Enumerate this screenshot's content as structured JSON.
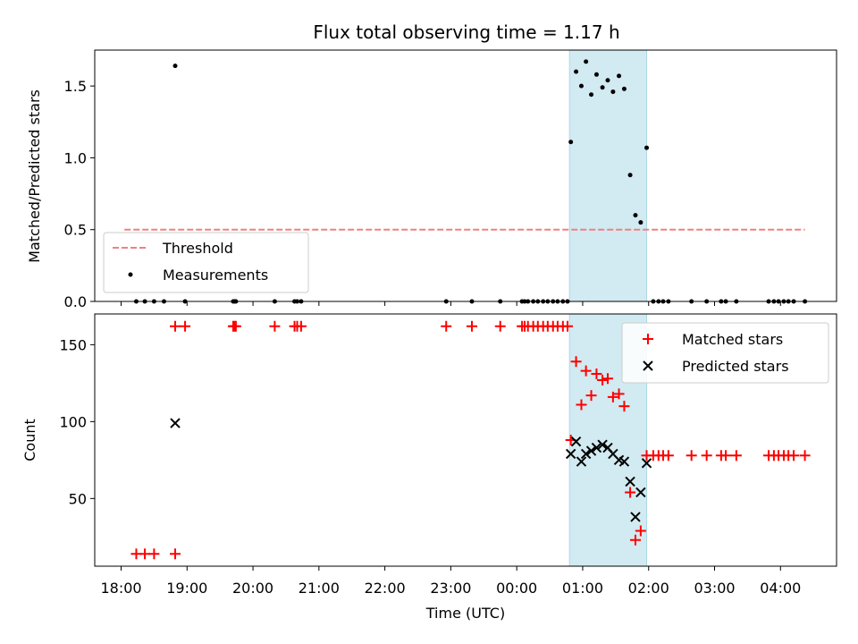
{
  "title": "Flux total observing time = 1.17 h",
  "colors": {
    "threshold": "#f08080",
    "measurement": "#000000",
    "matched": "#ff0000",
    "predicted": "#000000",
    "shade": "#add8e6"
  },
  "chart_data": [
    {
      "type": "scatter",
      "ylabel": "Matched/Predicted stars",
      "ylim": [
        0,
        1.75
      ],
      "xlim": [
        17.6,
        28.85
      ],
      "yticks": [
        0.0,
        0.5,
        1.0,
        1.5
      ],
      "ytick_labels": [
        "0.0",
        "0.5",
        "1.0",
        "1.5"
      ],
      "shaded_interval": [
        24.8,
        25.97
      ],
      "threshold": {
        "name": "Threshold",
        "value": 0.5,
        "x_range": [
          18.05,
          28.37
        ]
      },
      "legend": {
        "location": "lower-left",
        "entries": [
          "Threshold",
          "Measurements"
        ]
      },
      "series": [
        {
          "name": "Measurements",
          "points": [
            [
              18.23,
              0
            ],
            [
              18.36,
              0
            ],
            [
              18.5,
              0
            ],
            [
              18.65,
              0
            ],
            [
              18.82,
              1.64
            ],
            [
              18.97,
              0
            ],
            [
              19.7,
              0
            ],
            [
              19.72,
              0
            ],
            [
              19.74,
              0
            ],
            [
              20.33,
              0
            ],
            [
              20.63,
              0
            ],
            [
              20.67,
              0
            ],
            [
              20.73,
              0
            ],
            [
              22.93,
              0
            ],
            [
              23.32,
              0
            ],
            [
              23.75,
              0
            ],
            [
              24.08,
              0
            ],
            [
              24.12,
              0
            ],
            [
              24.17,
              0
            ],
            [
              24.25,
              0
            ],
            [
              24.32,
              0
            ],
            [
              24.4,
              0
            ],
            [
              24.47,
              0
            ],
            [
              24.55,
              0
            ],
            [
              24.62,
              0
            ],
            [
              24.7,
              0
            ],
            [
              24.77,
              0
            ],
            [
              24.82,
              1.11
            ],
            [
              24.9,
              1.6
            ],
            [
              24.98,
              1.5
            ],
            [
              25.05,
              1.67
            ],
            [
              25.13,
              1.44
            ],
            [
              25.21,
              1.58
            ],
            [
              25.3,
              1.49
            ],
            [
              25.38,
              1.54
            ],
            [
              25.46,
              1.46
            ],
            [
              25.55,
              1.57
            ],
            [
              25.63,
              1.48
            ],
            [
              25.72,
              0.88
            ],
            [
              25.8,
              0.6
            ],
            [
              25.88,
              0.55
            ],
            [
              25.97,
              1.07
            ],
            [
              26.07,
              0
            ],
            [
              26.15,
              0
            ],
            [
              26.22,
              0
            ],
            [
              26.3,
              0
            ],
            [
              26.65,
              0
            ],
            [
              26.88,
              0
            ],
            [
              27.1,
              0
            ],
            [
              27.17,
              0
            ],
            [
              27.33,
              0
            ],
            [
              27.82,
              0
            ],
            [
              27.9,
              0
            ],
            [
              27.97,
              0
            ],
            [
              28.05,
              0
            ],
            [
              28.12,
              0
            ],
            [
              28.2,
              0
            ],
            [
              28.37,
              0
            ]
          ]
        }
      ]
    },
    {
      "type": "scatter",
      "ylabel": "Count",
      "xlabel": "Time (UTC)",
      "ylim": [
        6,
        170
      ],
      "xlim": [
        17.6,
        28.85
      ],
      "yticks": [
        50,
        100,
        150
      ],
      "ytick_labels": [
        "50",
        "100",
        "150"
      ],
      "xticks": [
        18,
        19,
        20,
        21,
        22,
        23,
        24,
        25,
        26,
        27,
        28
      ],
      "xtick_labels": [
        "18:00",
        "19:00",
        "20:00",
        "21:00",
        "22:00",
        "23:00",
        "00:00",
        "01:00",
        "02:00",
        "03:00",
        "04:00"
      ],
      "shaded_interval": [
        24.8,
        25.97
      ],
      "legend": {
        "location": "upper-right",
        "entries": [
          "Matched stars",
          "Predicted stars"
        ]
      },
      "series": [
        {
          "name": "Matched stars",
          "marker": "+",
          "points": [
            [
              18.23,
              14
            ],
            [
              18.36,
              14
            ],
            [
              18.5,
              14
            ],
            [
              18.82,
              14
            ],
            [
              18.82,
              162
            ],
            [
              18.97,
              162
            ],
            [
              19.7,
              162
            ],
            [
              19.72,
              162
            ],
            [
              19.74,
              162
            ],
            [
              20.33,
              162
            ],
            [
              20.63,
              162
            ],
            [
              20.67,
              162
            ],
            [
              20.73,
              162
            ],
            [
              22.93,
              162
            ],
            [
              23.32,
              162
            ],
            [
              23.75,
              162
            ],
            [
              24.08,
              162
            ],
            [
              24.12,
              162
            ],
            [
              24.17,
              162
            ],
            [
              24.25,
              162
            ],
            [
              24.32,
              162
            ],
            [
              24.4,
              162
            ],
            [
              24.47,
              162
            ],
            [
              24.55,
              162
            ],
            [
              24.62,
              162
            ],
            [
              24.7,
              162
            ],
            [
              24.77,
              162
            ],
            [
              24.82,
              88
            ],
            [
              24.9,
              139
            ],
            [
              24.98,
              111
            ],
            [
              25.05,
              133
            ],
            [
              25.13,
              117
            ],
            [
              25.21,
              131
            ],
            [
              25.3,
              127
            ],
            [
              25.38,
              128
            ],
            [
              25.46,
              116
            ],
            [
              25.55,
              118
            ],
            [
              25.63,
              110
            ],
            [
              25.72,
              54
            ],
            [
              25.8,
              23
            ],
            [
              25.88,
              29
            ],
            [
              25.97,
              78
            ],
            [
              26.07,
              78
            ],
            [
              26.15,
              78
            ],
            [
              26.22,
              78
            ],
            [
              26.3,
              78
            ],
            [
              26.65,
              78
            ],
            [
              26.88,
              78
            ],
            [
              27.1,
              78
            ],
            [
              27.17,
              78
            ],
            [
              27.33,
              78
            ],
            [
              27.82,
              78
            ],
            [
              27.9,
              78
            ],
            [
              27.97,
              78
            ],
            [
              28.05,
              78
            ],
            [
              28.12,
              78
            ],
            [
              28.2,
              78
            ],
            [
              28.37,
              78
            ]
          ]
        },
        {
          "name": "Predicted stars",
          "marker": "x",
          "points": [
            [
              18.82,
              99
            ],
            [
              24.82,
              79
            ],
            [
              24.9,
              87
            ],
            [
              24.98,
              74
            ],
            [
              25.05,
              79
            ],
            [
              25.13,
              81
            ],
            [
              25.21,
              83
            ],
            [
              25.3,
              85
            ],
            [
              25.38,
              83
            ],
            [
              25.46,
              79
            ],
            [
              25.55,
              75
            ],
            [
              25.63,
              74
            ],
            [
              25.72,
              61
            ],
            [
              25.8,
              38
            ],
            [
              25.88,
              54
            ],
            [
              25.97,
              73
            ]
          ]
        }
      ]
    }
  ]
}
